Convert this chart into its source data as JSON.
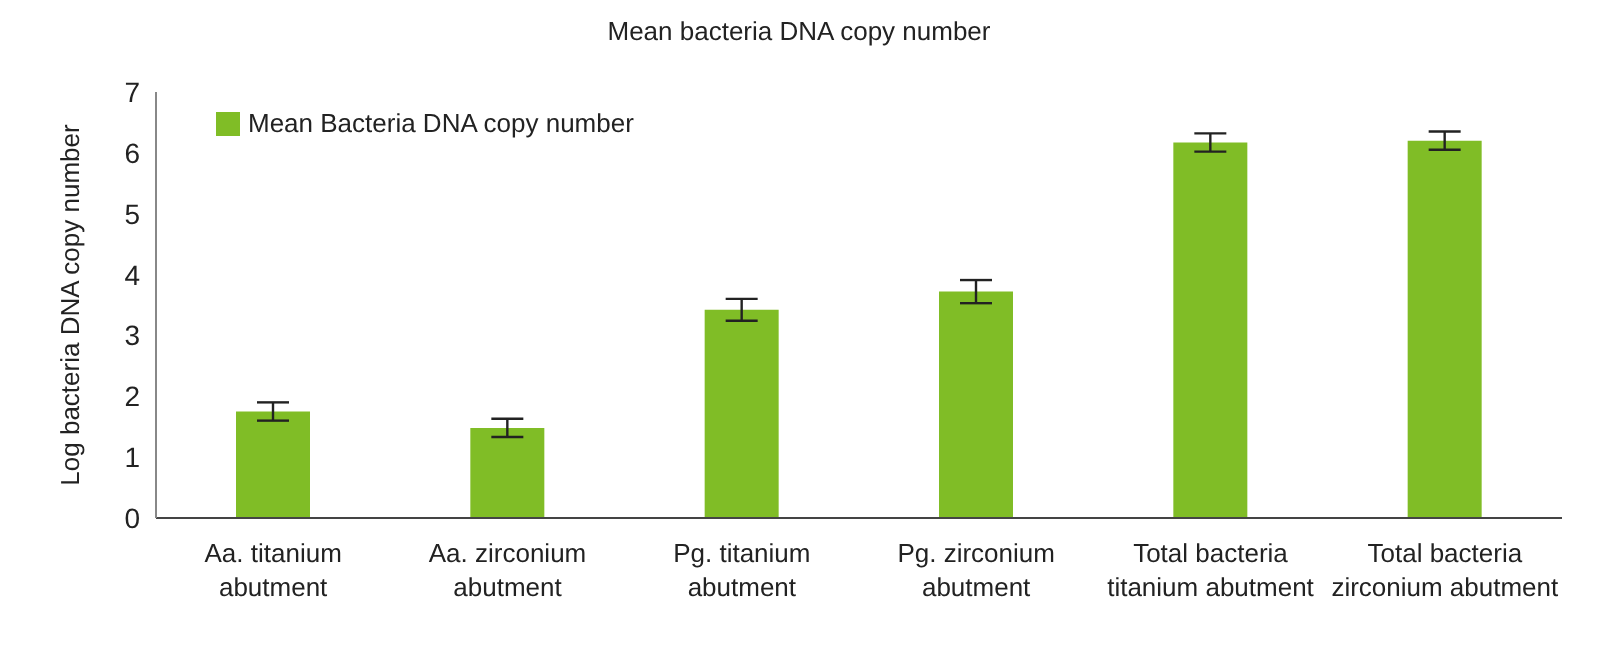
{
  "chart_data": {
    "type": "bar",
    "title": "Mean bacteria DNA copy number",
    "ylabel": "Log bacteria DNA copy number",
    "categories": [
      "Aa. titanium abutment",
      "Aa. zirconium abutment",
      "Pg. titanium abutment",
      "Pg. zirconium abutment",
      "Total bacteria titanium abutment",
      "Total bacteria zirconium abutment"
    ],
    "series": [
      {
        "name": "Mean Bacteria DNA copy number",
        "color": "#80bd26",
        "values": [
          1.75,
          1.48,
          3.42,
          3.72,
          6.17,
          6.2
        ],
        "errors": [
          0.15,
          0.15,
          0.18,
          0.19,
          0.15,
          0.15
        ]
      }
    ],
    "ylim": [
      0,
      7
    ],
    "yticks": [
      0,
      1,
      2,
      3,
      4,
      5,
      6,
      7
    ],
    "grid": false,
    "legend": "top left"
  }
}
